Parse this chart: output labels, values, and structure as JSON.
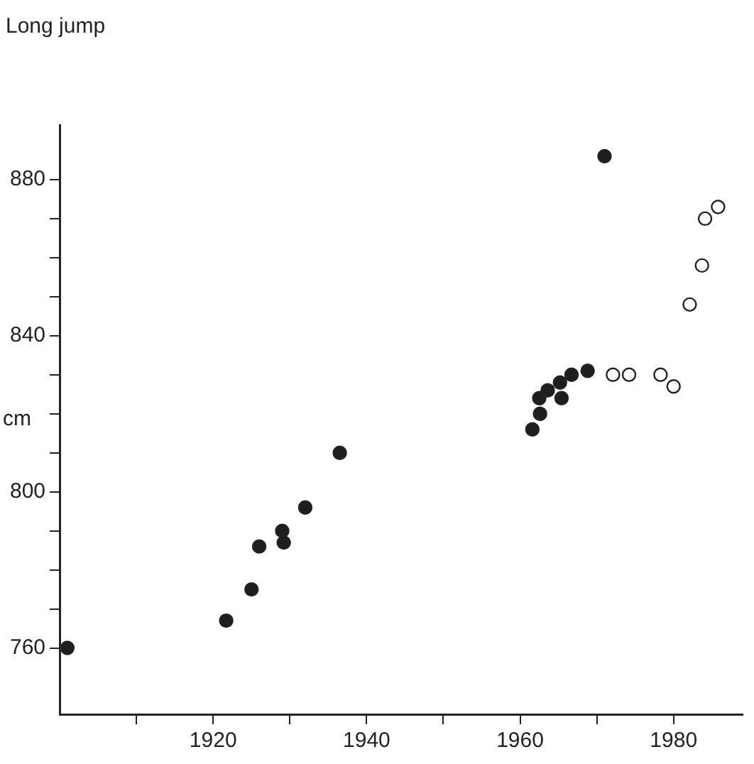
{
  "chart_data": {
    "type": "scatter",
    "title": "Long jump",
    "ylabel": "cm",
    "xlim": [
      1900,
      1989
    ],
    "ylim": [
      743,
      894
    ],
    "xticks": [
      {
        "value": 1910,
        "label": null
      },
      1920,
      {
        "value": 1930,
        "label": null
      },
      1940,
      {
        "value": 1950,
        "label": null
      },
      1960,
      {
        "value": 1970,
        "label": null
      },
      1980
    ],
    "yticks": [
      760,
      {
        "value": 770,
        "label": null
      },
      {
        "value": 780,
        "label": null
      },
      {
        "value": 790,
        "label": null
      },
      800,
      {
        "value": 810,
        "label": null
      },
      {
        "value": 820,
        "label": null
      },
      {
        "value": 830,
        "label": null
      },
      840,
      {
        "value": 850,
        "label": null
      },
      {
        "value": 860,
        "label": null
      },
      {
        "value": 870,
        "label": null
      },
      880
    ],
    "grid": false,
    "legend": false,
    "marker": "circle",
    "series": [
      {
        "color": "#1e1e1e",
        "x": [
          1901,
          1921.7,
          1925,
          1926,
          1929,
          1929.2,
          1932,
          1936.5,
          1961.6,
          1962.6,
          1962.5,
          1963.6,
          1965.4,
          1965.2,
          1966.7,
          1968.8,
          1971
        ],
        "values": [
          760,
          767,
          775,
          786,
          790,
          787,
          796,
          810,
          816,
          820,
          824,
          826,
          824,
          828,
          830,
          831,
          886
        ]
      },
      {
        "color": "#ffffff",
        "x": [
          1972.1,
          1974.2,
          1978.3,
          1980,
          1982.1,
          1983.7,
          1984.1,
          1985.8
        ],
        "values": [
          830,
          830,
          830,
          827,
          848,
          858,
          870,
          873
        ]
      }
    ]
  }
}
